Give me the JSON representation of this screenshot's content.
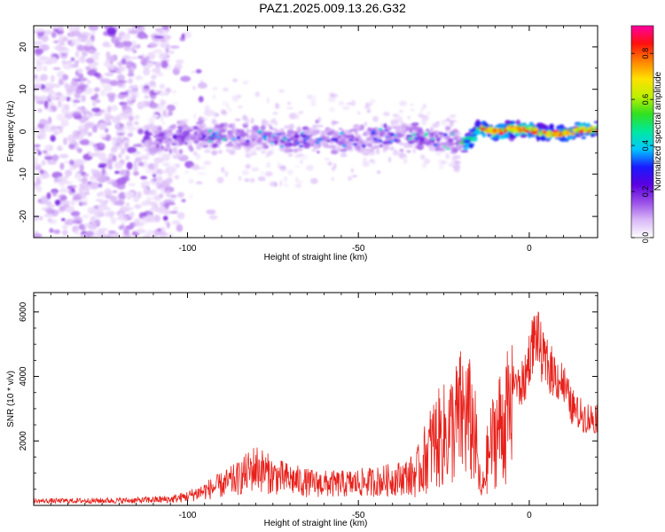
{
  "title": "PAZ1.2025.009.13.26.G32",
  "chart_data": [
    {
      "type": "heatmap",
      "xlabel": "Height of straight line (km)",
      "ylabel": "Frequency (Hz)",
      "xlim": [
        -145,
        20
      ],
      "ylim": [
        -25,
        25
      ],
      "xticks": [
        -100,
        -50,
        0
      ],
      "yticks": [
        -20,
        -10,
        0,
        10,
        20
      ],
      "colorbar": {
        "label": "Normalized spectral amplitude",
        "ticks": [
          "0.0",
          "0.2",
          "0.4",
          "0.6",
          "0.8"
        ],
        "range": [
          0,
          0.92
        ],
        "colors": [
          "#ffffff",
          "#d9b8f7",
          "#9a4ee8",
          "#5a00e0",
          "#1a1aff",
          "#00c8ff",
          "#00e8a0",
          "#30e020",
          "#c0f000",
          "#ffe000",
          "#ff8000",
          "#ff1010",
          "#ff00a0"
        ]
      },
      "ridge": [
        {
          "x": -110,
          "y": -2
        },
        {
          "x": -100,
          "y": -1
        },
        {
          "x": -90,
          "y": -1
        },
        {
          "x": -80,
          "y": -1
        },
        {
          "x": -70,
          "y": -2
        },
        {
          "x": -60,
          "y": -1
        },
        {
          "x": -50,
          "y": -2
        },
        {
          "x": -40,
          "y": -1
        },
        {
          "x": -30,
          "y": -1
        },
        {
          "x": -25,
          "y": -2
        },
        {
          "x": -20,
          "y": -3
        },
        {
          "x": -17,
          "y": -2
        },
        {
          "x": -15,
          "y": 1
        },
        {
          "x": -10,
          "y": 0
        },
        {
          "x": -5,
          "y": 0.5
        },
        {
          "x": 0,
          "y": 0.5
        },
        {
          "x": 5,
          "y": -0.5
        },
        {
          "x": 10,
          "y": -0.5
        },
        {
          "x": 15,
          "y": 0.5
        },
        {
          "x": 20,
          "y": 0.5
        }
      ]
    },
    {
      "type": "line",
      "xlabel": "Height of straight line (km)",
      "ylabel": "SNR (10 * v/v)",
      "xlim": [
        -145,
        20
      ],
      "ylim": [
        0,
        6600
      ],
      "xticks": [
        -100,
        -50,
        0
      ],
      "yticks": [
        2000,
        4000,
        6000
      ],
      "color": "#e8201a",
      "series": [
        {
          "values": [
            [
              -145,
              150
            ],
            [
              -130,
              170
            ],
            [
              -115,
              190
            ],
            [
              -105,
              260
            ],
            [
              -100,
              400
            ],
            [
              -95,
              650
            ],
            [
              -90,
              900
            ],
            [
              -85,
              1200
            ],
            [
              -82,
              1500
            ],
            [
              -80,
              1700
            ],
            [
              -75,
              1300
            ],
            [
              -70,
              1150
            ],
            [
              -65,
              1000
            ],
            [
              -60,
              950
            ],
            [
              -55,
              950
            ],
            [
              -50,
              1000
            ],
            [
              -45,
              1050
            ],
            [
              -40,
              1150
            ],
            [
              -35,
              1300
            ],
            [
              -32,
              1700
            ],
            [
              -30,
              2400
            ],
            [
              -28,
              3000
            ],
            [
              -25,
              3300
            ],
            [
              -22,
              3800
            ],
            [
              -20,
              4300
            ],
            [
              -18,
              4200
            ],
            [
              -16,
              3500
            ],
            [
              -15,
              1800
            ],
            [
              -14,
              500
            ],
            [
              -12,
              2400
            ],
            [
              -10,
              3400
            ],
            [
              -8,
              3900
            ],
            [
              -5,
              4400
            ],
            [
              -3,
              3900
            ],
            [
              -1,
              4300
            ],
            [
              0,
              5000
            ],
            [
              2,
              5800
            ],
            [
              4,
              4900
            ],
            [
              6,
              4600
            ],
            [
              8,
              4300
            ],
            [
              10,
              4100
            ],
            [
              12,
              3400
            ],
            [
              14,
              3100
            ],
            [
              16,
              3000
            ],
            [
              18,
              2900
            ],
            [
              20,
              3000
            ]
          ]
        }
      ]
    }
  ]
}
